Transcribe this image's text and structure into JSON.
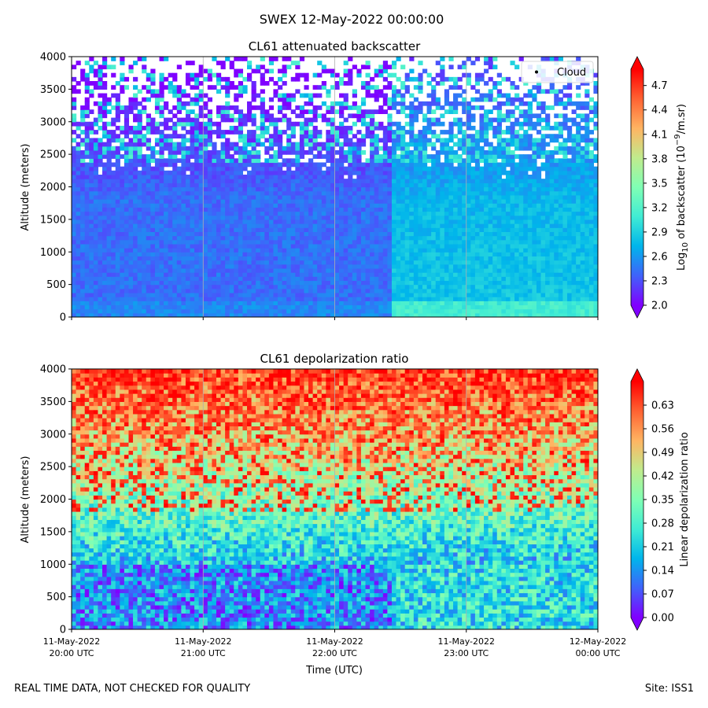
{
  "figure": {
    "suptitle": "SWEX 12-May-2022 00:00:00",
    "footer_left": "REAL TIME DATA, NOT CHECKED FOR QUALITY",
    "footer_right": "Site: ISS1"
  },
  "colors": {
    "rainbow": [
      "#8000ff",
      "#4062fa",
      "#00b5eb",
      "#40ecd4",
      "#80ffb4",
      "#c0eb8d",
      "#ffb462",
      "#ff6232",
      "#ff0000"
    ],
    "grid": "#b0b0b0",
    "nodata": "#ffffff"
  },
  "chart_data": [
    {
      "type": "heatmap",
      "title": "CL61 attenuated backscatter",
      "xlabel": "",
      "ylabel": "Altitude (meters)",
      "ylim": [
        0,
        4000
      ],
      "yticks": [
        0,
        500,
        1000,
        1500,
        2000,
        2500,
        3000,
        3500,
        4000
      ],
      "xlim_hours": [
        20,
        24
      ],
      "xticks_hours": [
        20,
        21,
        22,
        23,
        24
      ],
      "colorbar": {
        "label_prefix": "Log",
        "label_sub": "10",
        "label_mid": " of backscatter (10",
        "label_sup": "−9",
        "label_suffix": "/m.sr)",
        "vmin": 2.0,
        "vmax": 4.9,
        "ticks": [
          "2.0",
          "2.3",
          "2.6",
          "2.9",
          "3.2",
          "3.5",
          "3.8",
          "4.1",
          "4.4",
          "4.7"
        ]
      },
      "legend": {
        "label": "Cloud",
        "position": "top-right"
      },
      "grid": true
    },
    {
      "type": "heatmap",
      "title": "CL61 depolarization ratio",
      "xlabel": "Time (UTC)",
      "ylabel": "Altitude (meters)",
      "ylim": [
        0,
        4000
      ],
      "yticks": [
        0,
        500,
        1000,
        1500,
        2000,
        2500,
        3000,
        3500,
        4000
      ],
      "xlim_hours": [
        20,
        24
      ],
      "xticks_hours": [
        20,
        21,
        22,
        23,
        24
      ],
      "xticklabels": [
        [
          "11-May-2022",
          "20:00 UTC"
        ],
        [
          "11-May-2022",
          "21:00 UTC"
        ],
        [
          "11-May-2022",
          "22:00 UTC"
        ],
        [
          "11-May-2022",
          "23:00 UTC"
        ],
        [
          "12-May-2022",
          "00:00 UTC"
        ]
      ],
      "colorbar": {
        "label": "Linear depolarization ratio",
        "vmin": 0.0,
        "vmax": 0.7,
        "ticks": [
          "0.00",
          "0.07",
          "0.14",
          "0.21",
          "0.28",
          "0.35",
          "0.42",
          "0.49",
          "0.56",
          "0.63"
        ]
      },
      "grid": true
    }
  ]
}
